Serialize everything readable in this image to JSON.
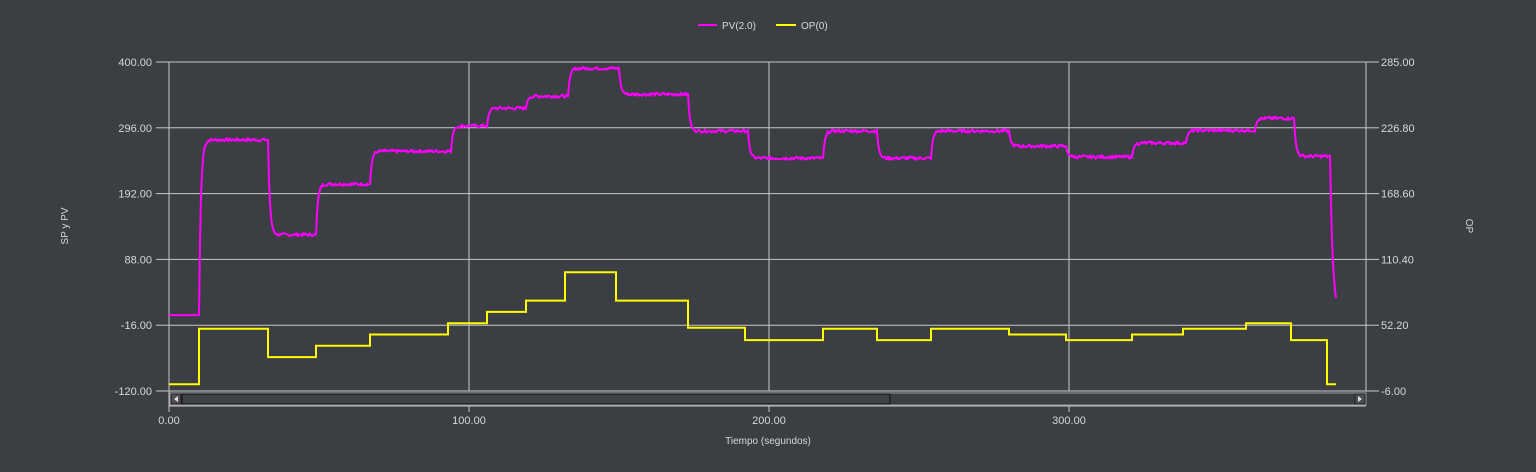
{
  "legend": {
    "items": [
      {
        "label": "PV(2.0)",
        "color": "#ff00ff"
      },
      {
        "label": "OP(0)",
        "color": "#ffff00"
      }
    ]
  },
  "axes": {
    "x_title": "Tiempo (segundos)",
    "y_left_title": "SP y PV",
    "y_right_title": "OP"
  },
  "scrollbar": {
    "left_arrow": "◄",
    "right_arrow": "►"
  },
  "colors": {
    "background": "#3b3e42",
    "grid": "#c8c8c8",
    "pv": "#ff00ff",
    "op": "#ffff00",
    "text": "#d8d8d8"
  },
  "chart_data": {
    "type": "line",
    "title": "",
    "xlabel": "Tiempo (segundos)",
    "ylabel": "SP y PV",
    "y2label": "OP",
    "xlim": [
      0,
      399
    ],
    "ylim": [
      -120,
      400
    ],
    "y2lim": [
      -6,
      285
    ],
    "x_ticks": [
      "0.00",
      "100.00",
      "200.00",
      "300.00"
    ],
    "y_ticks": [
      "400.00",
      "296.00",
      "192.00",
      "88.00",
      "-16.00",
      "-120.00"
    ],
    "y2_ticks": [
      "285.00",
      "226.80",
      "168.60",
      "110.40",
      "52.20",
      "-6.00"
    ],
    "grid": true,
    "legend_position": "top",
    "series": [
      {
        "name": "PV(2.0)",
        "axis": "left",
        "color": "#ff00ff",
        "step_segments": [
          {
            "t0": 0,
            "t1": 10,
            "value": 0
          },
          {
            "t0": 10,
            "t1": 33,
            "value": 277
          },
          {
            "t0": 33,
            "t1": 49,
            "value": 127
          },
          {
            "t0": 49,
            "t1": 67,
            "value": 207
          },
          {
            "t0": 67,
            "t1": 94,
            "value": 259
          },
          {
            "t0": 94,
            "t1": 106,
            "value": 299
          },
          {
            "t0": 106,
            "t1": 119,
            "value": 327
          },
          {
            "t0": 119,
            "t1": 133,
            "value": 346
          },
          {
            "t0": 133,
            "t1": 150,
            "value": 390
          },
          {
            "t0": 150,
            "t1": 173,
            "value": 349
          },
          {
            "t0": 173,
            "t1": 193,
            "value": 291
          },
          {
            "t0": 193,
            "t1": 218,
            "value": 248
          },
          {
            "t0": 218,
            "t1": 236,
            "value": 291
          },
          {
            "t0": 236,
            "t1": 254,
            "value": 248
          },
          {
            "t0": 254,
            "t1": 280,
            "value": 291
          },
          {
            "t0": 280,
            "t1": 299,
            "value": 267
          },
          {
            "t0": 299,
            "t1": 321,
            "value": 250
          },
          {
            "t0": 321,
            "t1": 339,
            "value": 272
          },
          {
            "t0": 339,
            "t1": 362,
            "value": 292
          },
          {
            "t0": 362,
            "t1": 375,
            "value": 311
          },
          {
            "t0": 375,
            "t1": 387,
            "value": 251
          },
          {
            "t0": 387,
            "t1": 389,
            "value": 0
          }
        ]
      },
      {
        "name": "OP(0)",
        "axis": "right",
        "color": "#ffff00",
        "step_segments": [
          {
            "t0": 0,
            "t1": 10,
            "value": 0
          },
          {
            "t0": 10,
            "t1": 33,
            "value": 49
          },
          {
            "t0": 33,
            "t1": 49,
            "value": 24
          },
          {
            "t0": 49,
            "t1": 67,
            "value": 34
          },
          {
            "t0": 67,
            "t1": 93,
            "value": 44
          },
          {
            "t0": 93,
            "t1": 106,
            "value": 54
          },
          {
            "t0": 106,
            "t1": 119,
            "value": 64
          },
          {
            "t0": 119,
            "t1": 132,
            "value": 74
          },
          {
            "t0": 132,
            "t1": 149,
            "value": 99
          },
          {
            "t0": 149,
            "t1": 173,
            "value": 74
          },
          {
            "t0": 173,
            "t1": 192,
            "value": 50
          },
          {
            "t0": 192,
            "t1": 218,
            "value": 39
          },
          {
            "t0": 218,
            "t1": 236,
            "value": 49
          },
          {
            "t0": 236,
            "t1": 254,
            "value": 39
          },
          {
            "t0": 254,
            "t1": 280,
            "value": 49
          },
          {
            "t0": 280,
            "t1": 299,
            "value": 44
          },
          {
            "t0": 299,
            "t1": 321,
            "value": 39
          },
          {
            "t0": 321,
            "t1": 338,
            "value": 44
          },
          {
            "t0": 338,
            "t1": 359,
            "value": 49
          },
          {
            "t0": 359,
            "t1": 374,
            "value": 54
          },
          {
            "t0": 374,
            "t1": 386,
            "value": 39
          },
          {
            "t0": 386,
            "t1": 389,
            "value": 0
          }
        ]
      }
    ]
  }
}
